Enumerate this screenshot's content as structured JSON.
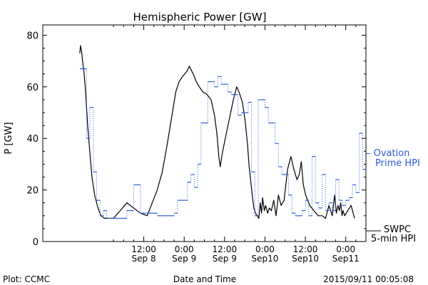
{
  "chart_data": {
    "type": "line",
    "title": "Hemispheric Power [GW]",
    "ylabel": "P [GW]",
    "xlabel": "Date and Time",
    "ylim": [
      0,
      84
    ],
    "xlim": [
      -18,
      78
    ],
    "yticks": [
      0,
      20,
      40,
      60,
      80
    ],
    "xtick_labels": [
      {
        "x": 12,
        "line1": "12:00",
        "line2": "Sep 8"
      },
      {
        "x": 24,
        "line1": "0:00",
        "line2": "Sep 9"
      },
      {
        "x": 36,
        "line1": "12:00",
        "line2": "Sep 9"
      },
      {
        "x": 48,
        "line1": "0:00",
        "line2": "Sep10"
      },
      {
        "x": 60,
        "line1": "12:00",
        "line2": "Sep10"
      },
      {
        "x": 72,
        "line1": "0:00",
        "line2": "Sep11"
      }
    ],
    "minor_xticks": [
      3,
      6,
      9,
      15,
      18,
      21,
      27,
      30,
      33,
      39,
      42,
      45,
      51,
      54,
      57,
      63,
      66,
      69,
      75
    ],
    "colors": {
      "swpc": "#000000",
      "ovation": "#2a5bd7"
    },
    "series": [
      {
        "name": "SWPC 5-min HPI",
        "style": "solid",
        "x": [
          -7,
          -6.8,
          -6.5,
          -6.2,
          -5.8,
          -5.4,
          -5,
          -4.6,
          -4,
          -3.4,
          -2.6,
          -1.6,
          -0.7,
          0.3,
          1,
          2,
          3,
          5,
          7,
          9,
          11,
          13,
          14.5,
          16,
          17.5,
          19,
          20.5,
          21.5,
          22.5,
          23.5,
          24.8,
          25.5,
          26.7,
          27.6,
          28.5,
          29.6,
          30.8,
          32,
          33,
          33.7,
          34.3,
          34.7,
          35.3,
          36.2,
          37.5,
          38.6,
          39.6,
          40.3,
          41.3,
          42.1,
          42.8,
          43.3,
          43.9,
          44.3,
          44.7,
          45.2,
          45.7,
          46.2,
          46.6,
          47,
          47.3,
          47.8,
          48.2,
          48.8,
          49.3,
          49.9,
          50.6,
          51.3,
          52,
          52.8,
          53.7,
          54.7,
          55.7,
          56.6,
          57.5,
          58.2,
          58.8,
          59.4,
          60.1,
          61.3,
          62.5,
          63.8,
          65,
          66,
          67,
          67.5,
          68,
          68.7,
          69.2,
          69.7,
          70.1,
          70.5,
          70.9,
          71.2,
          71.7,
          72.6,
          73.6,
          74.6
        ],
        "y": [
          73,
          76,
          74,
          70,
          66,
          60,
          52,
          44,
          34,
          25,
          18,
          13,
          10,
          9,
          9,
          9,
          9,
          12,
          15,
          13,
          11,
          10,
          15,
          20,
          27,
          38,
          50,
          58,
          62,
          64,
          66,
          68,
          65,
          62,
          60,
          58,
          57,
          55,
          49,
          42,
          33,
          29,
          34,
          40,
          48,
          55,
          60,
          58,
          54,
          47,
          38,
          29,
          22,
          17,
          13,
          11,
          10,
          9,
          15,
          11,
          17,
          12,
          14,
          11,
          13,
          12,
          16,
          10,
          18,
          14,
          16,
          28,
          33,
          28,
          24,
          26,
          31,
          22,
          18,
          14,
          12,
          10,
          10,
          9,
          14,
          12,
          10,
          18,
          11,
          14,
          12,
          15,
          10,
          12,
          10,
          12,
          14,
          9
        ]
      },
      {
        "name": "Ovation Prime HPI",
        "style": "dotted-step",
        "x": [
          -7,
          -6,
          -5,
          -4,
          -3,
          -2,
          -1,
          0,
          1,
          3,
          5,
          7,
          8,
          9,
          11,
          13,
          15,
          16,
          17,
          18,
          20,
          21,
          22,
          23,
          25,
          26,
          27,
          28,
          29,
          30,
          31,
          33,
          34,
          35,
          36,
          37,
          38,
          39,
          40,
          41,
          42,
          43,
          44,
          45,
          46,
          47,
          48,
          49,
          50,
          51,
          52,
          53,
          54,
          55,
          56,
          57,
          58,
          59,
          60,
          61,
          62,
          63,
          64,
          65,
          66,
          67,
          68,
          69,
          70,
          71,
          72,
          73,
          74,
          75,
          76,
          77
        ],
        "y": [
          67,
          67,
          40,
          52,
          27,
          16,
          10,
          12,
          9,
          9,
          9,
          12,
          12,
          22,
          11,
          11,
          11,
          10,
          10,
          10,
          10,
          11,
          16,
          16,
          23,
          26,
          21,
          30,
          46,
          46,
          62,
          60,
          64,
          61,
          61,
          58,
          57,
          57,
          49,
          50,
          50,
          54,
          27,
          10,
          55,
          55,
          52,
          46,
          46,
          38,
          29,
          26,
          26,
          18,
          11,
          10,
          10,
          12,
          16,
          10,
          33,
          15,
          13,
          26,
          12,
          15,
          12,
          24,
          16,
          14,
          16,
          17,
          22,
          19,
          42,
          28
        ]
      }
    ],
    "legend": [
      {
        "text1": "– Ovation",
        "text2": "Prime HPI",
        "placement": "right-middle"
      },
      {
        "text1": "SWPC",
        "text2": "5-min HPI",
        "placement": "right-bottom"
      }
    ]
  },
  "footer": {
    "left": "Plot: CCMC",
    "center": "Date and Time",
    "right": "2015/09/11 00:05:08"
  }
}
